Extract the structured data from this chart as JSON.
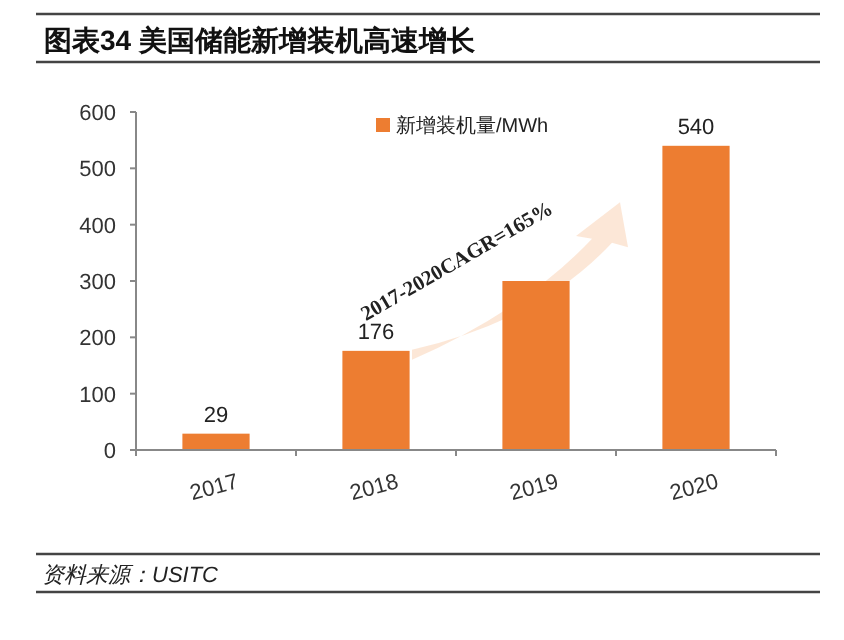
{
  "chart_data": {
    "type": "bar",
    "title": "图表34    美国储能新增装机高速增长",
    "categories": [
      "2017",
      "2018",
      "2019",
      "2020"
    ],
    "series": [
      {
        "name": "新增装机量/MWh",
        "color": "#ed7d31",
        "values": [
          29,
          176,
          300,
          540
        ],
        "value_labels": [
          "29",
          "176",
          null,
          "540"
        ]
      }
    ],
    "ylim": [
      0,
      600
    ],
    "yticks": [
      0,
      100,
      200,
      300,
      400,
      500,
      600
    ],
    "legend": "top",
    "annotations": [
      "2017-2020CAGR=165%",
      "资料来源：USITC"
    ]
  }
}
